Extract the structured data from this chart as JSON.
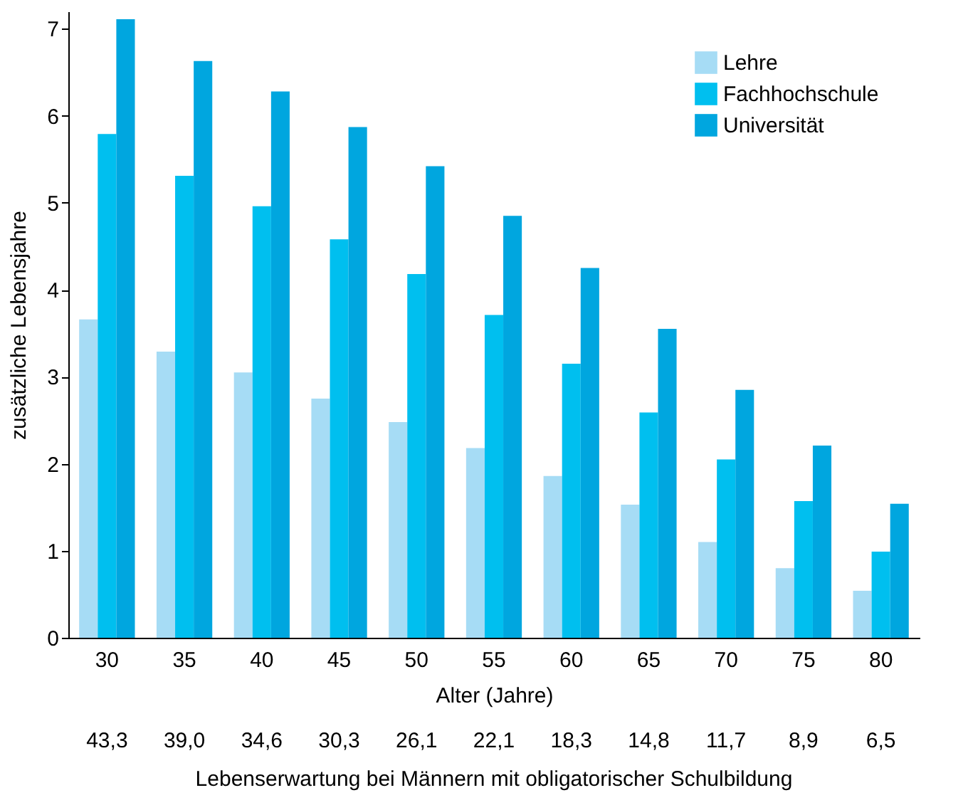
{
  "chart_data": {
    "type": "bar",
    "xlabel": "Alter (Jahre)",
    "ylabel": "zusätzliche Lebensjahre",
    "categories": [
      "30",
      "35",
      "40",
      "45",
      "50",
      "55",
      "60",
      "65",
      "70",
      "75",
      "80"
    ],
    "series": [
      {
        "name": "Lehre",
        "color": "#a6dcf5",
        "values": [
          3.66,
          3.29,
          3.05,
          2.75,
          2.48,
          2.18,
          1.86,
          1.53,
          1.1,
          0.8,
          0.54
        ]
      },
      {
        "name": "Fachhochschule",
        "color": "#00bfef",
        "values": [
          5.79,
          5.31,
          4.96,
          4.58,
          4.18,
          3.71,
          3.15,
          2.59,
          2.05,
          1.57,
          0.99
        ]
      },
      {
        "name": "Universität",
        "color": "#00a6df",
        "values": [
          7.11,
          6.63,
          6.28,
          5.87,
          5.42,
          4.85,
          4.25,
          3.55,
          2.85,
          2.21,
          1.54
        ]
      }
    ],
    "ylim": [
      0,
      7.2
    ],
    "yticks": [
      0,
      1,
      2,
      3,
      4,
      5,
      6,
      7
    ],
    "legend": "top right",
    "annotations": [
      "43,3",
      "39,0",
      "34,6",
      "30,3",
      "26,1",
      "22,1",
      "18,3",
      "14,8",
      "11,7",
      "8,9",
      "6,5",
      "Lebenserwartung bei Männern mit obligatorischer Schulbildung"
    ]
  }
}
